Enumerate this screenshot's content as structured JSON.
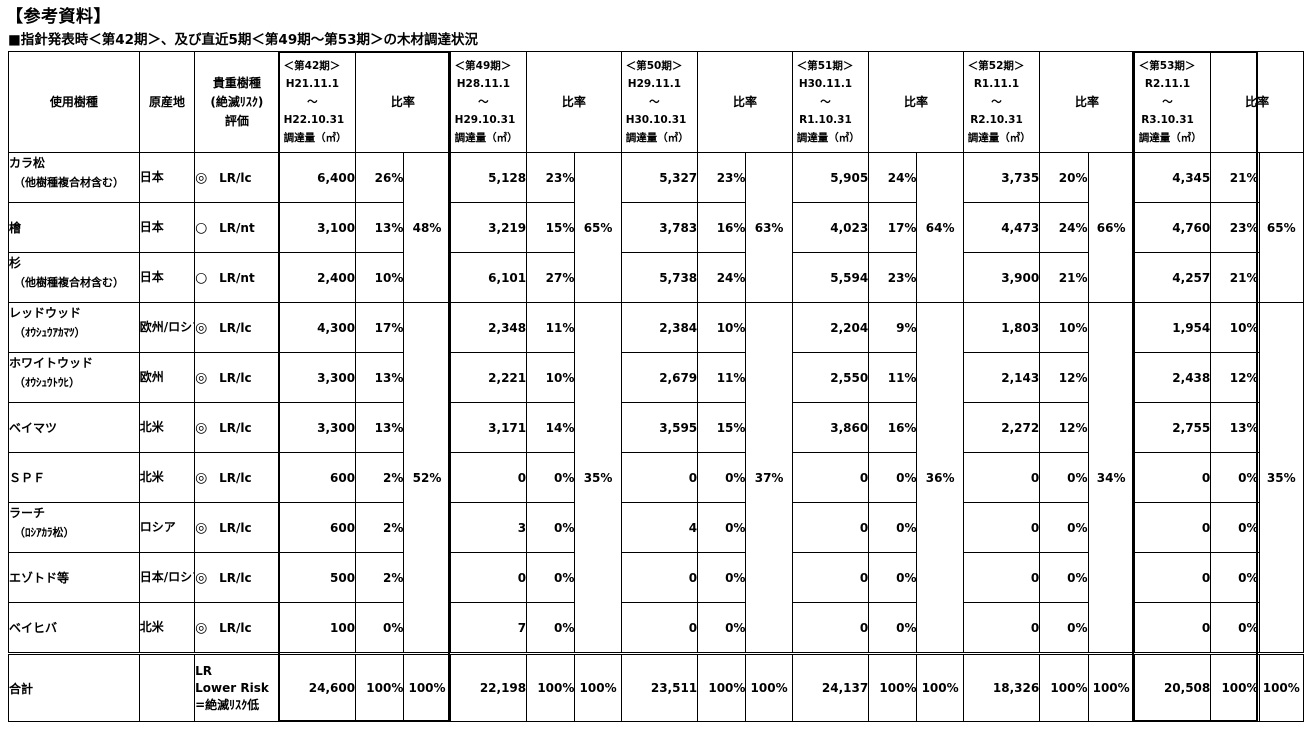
{
  "heading": "【参考資料】",
  "subheading": "■指針発表時＜第42期＞、及び直近5期＜第49期～第53期＞の木材調達状況",
  "columns": {
    "species": "使用樹種",
    "origin": "原産地",
    "rating_line1": "貴重樹種",
    "rating_line2": "(絶滅ﾘｽｸ)",
    "rating_line3": "評価",
    "ratio": "比率"
  },
  "periods": [
    {
      "label": "＜第42期＞",
      "from": "H21.11.1",
      "tilde": "～",
      "to": "H22.10.31",
      "unit": "調達量（㎥）"
    },
    {
      "label": "＜第49期＞",
      "from": "H28.11.1",
      "tilde": "～",
      "to": "H29.10.31",
      "unit": "調達量（㎥）"
    },
    {
      "label": "＜第50期＞",
      "from": "H29.11.1",
      "tilde": "～",
      "to": "H30.10.31",
      "unit": "調達量（㎥）"
    },
    {
      "label": "＜第51期＞",
      "from": "H30.11.1",
      "tilde": "～",
      "to": "R1.10.31",
      "unit": "調達量（㎥）"
    },
    {
      "label": "＜第52期＞",
      "from": "R1.11.1",
      "tilde": "～",
      "to": "R2.10.31",
      "unit": "調達量（㎥）"
    },
    {
      "label": "＜第53期＞",
      "from": "R2.11.1",
      "tilde": "～",
      "to": "R3.10.31",
      "unit": "調達量（㎥）"
    }
  ],
  "rows": [
    {
      "name": "カラ松",
      "note": "（他樹種複合材含む）",
      "origin": "日本",
      "mark": "◎",
      "risk": "LR/lc",
      "values": [
        [
          "6,400",
          "26%"
        ],
        [
          "5,128",
          "23%"
        ],
        [
          "5,327",
          "23%"
        ],
        [
          "5,905",
          "24%"
        ],
        [
          "3,735",
          "20%"
        ],
        [
          "4,345",
          "21%"
        ]
      ]
    },
    {
      "name": "檜",
      "note": "",
      "origin": "日本",
      "mark": "○",
      "risk": "LR/nt",
      "values": [
        [
          "3,100",
          "13%"
        ],
        [
          "3,219",
          "15%"
        ],
        [
          "3,783",
          "16%"
        ],
        [
          "4,023",
          "17%"
        ],
        [
          "4,473",
          "24%"
        ],
        [
          "4,760",
          "23%"
        ]
      ]
    },
    {
      "name": "杉",
      "note": "（他樹種複合材含む）",
      "origin": "日本",
      "mark": "○",
      "risk": "LR/nt",
      "values": [
        [
          "2,400",
          "10%"
        ],
        [
          "6,101",
          "27%"
        ],
        [
          "5,738",
          "24%"
        ],
        [
          "5,594",
          "23%"
        ],
        [
          "3,900",
          "21%"
        ],
        [
          "4,257",
          "21%"
        ]
      ]
    },
    {
      "name": "レッドウッド",
      "note": "（ｵｳｼｭｳｱｶﾏﾂ）",
      "origin": "欧州/ロシア",
      "mark": "◎",
      "risk": "LR/lc",
      "values": [
        [
          "4,300",
          "17%"
        ],
        [
          "2,348",
          "11%"
        ],
        [
          "2,384",
          "10%"
        ],
        [
          "2,204",
          "9%"
        ],
        [
          "1,803",
          "10%"
        ],
        [
          "1,954",
          "10%"
        ]
      ]
    },
    {
      "name": "ホワイトウッド",
      "note": "（ｵｳｼｭｳﾄｳﾋ）",
      "origin": "欧州",
      "mark": "◎",
      "risk": "LR/lc",
      "values": [
        [
          "3,300",
          "13%"
        ],
        [
          "2,221",
          "10%"
        ],
        [
          "2,679",
          "11%"
        ],
        [
          "2,550",
          "11%"
        ],
        [
          "2,143",
          "12%"
        ],
        [
          "2,438",
          "12%"
        ]
      ]
    },
    {
      "name": "ベイマツ",
      "note": "",
      "origin": "北米",
      "mark": "◎",
      "risk": "LR/lc",
      "values": [
        [
          "3,300",
          "13%"
        ],
        [
          "3,171",
          "14%"
        ],
        [
          "3,595",
          "15%"
        ],
        [
          "3,860",
          "16%"
        ],
        [
          "2,272",
          "12%"
        ],
        [
          "2,755",
          "13%"
        ]
      ]
    },
    {
      "name": "ＳＰＦ",
      "note": "",
      "origin": "北米",
      "mark": "◎",
      "risk": "LR/lc",
      "values": [
        [
          "600",
          "2%"
        ],
        [
          "0",
          "0%"
        ],
        [
          "0",
          "0%"
        ],
        [
          "0",
          "0%"
        ],
        [
          "0",
          "0%"
        ],
        [
          "0",
          "0%"
        ]
      ]
    },
    {
      "name": "ラーチ",
      "note": "（ﾛｼｱｶﾗ松）",
      "origin": "ロシア",
      "mark": "◎",
      "risk": "LR/lc",
      "values": [
        [
          "600",
          "2%"
        ],
        [
          "3",
          "0%"
        ],
        [
          "4",
          "0%"
        ],
        [
          "0",
          "0%"
        ],
        [
          "0",
          "0%"
        ],
        [
          "0",
          "0%"
        ]
      ]
    },
    {
      "name": "エゾトド等",
      "note": "",
      "origin": "日本/ロシア",
      "mark": "◎",
      "risk": "LR/lc",
      "values": [
        [
          "500",
          "2%"
        ],
        [
          "0",
          "0%"
        ],
        [
          "0",
          "0%"
        ],
        [
          "0",
          "0%"
        ],
        [
          "0",
          "0%"
        ],
        [
          "0",
          "0%"
        ]
      ]
    },
    {
      "name": "ベイヒバ",
      "note": "",
      "origin": "北米",
      "mark": "◎",
      "risk": "LR/lc",
      "values": [
        [
          "100",
          "0%"
        ],
        [
          "7",
          "0%"
        ],
        [
          "0",
          "0%"
        ],
        [
          "0",
          "0%"
        ],
        [
          "0",
          "0%"
        ],
        [
          "0",
          "0%"
        ]
      ]
    }
  ],
  "domestic_ratio": [
    "48%",
    "65%",
    "63%",
    "64%",
    "66%",
    "65%"
  ],
  "import_ratio": [
    "52%",
    "35%",
    "37%",
    "36%",
    "34%",
    "35%"
  ],
  "total": {
    "label": "合計",
    "legend": [
      "LR",
      "Lower Risk",
      "=絶滅ﾘｽｸ低"
    ],
    "values": [
      [
        "24,600",
        "100%",
        "100%"
      ],
      [
        "22,198",
        "100%",
        "100%"
      ],
      [
        "23,511",
        "100%",
        "100%"
      ],
      [
        "24,137",
        "100%",
        "100%"
      ],
      [
        "18,326",
        "100%",
        "100%"
      ],
      [
        "20,508",
        "100%",
        "100%"
      ]
    ]
  }
}
